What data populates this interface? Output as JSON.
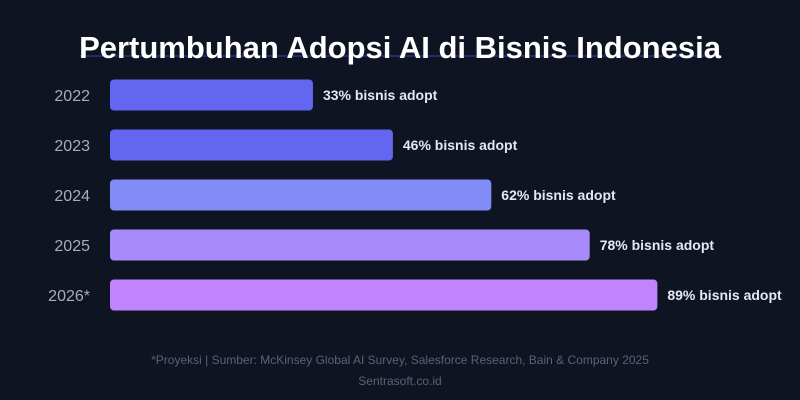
{
  "chart_data": {
    "type": "bar",
    "orientation": "horizontal",
    "title": "Pertumbuhan Adopsi AI di Bisnis Indonesia",
    "categories": [
      "2022",
      "2023",
      "2024",
      "2025",
      "2026*"
    ],
    "values": [
      33,
      46,
      62,
      78,
      89
    ],
    "data_labels": [
      "33% bisnis adopt",
      "46% bisnis adopt",
      "62% bisnis adopt",
      "78% bisnis adopt",
      "89% bisnis adopt"
    ],
    "bar_colors": [
      "#6366f1",
      "#6366f1",
      "#818cf8",
      "#a78bfa",
      "#c084fc"
    ],
    "xlim": [
      0,
      100
    ],
    "grid": false,
    "legend": "none"
  },
  "footer": {
    "note": "*Proyeksi | Sumber: McKinsey Global AI Survey, Salesforce Research, Bain & Company 2025",
    "brand": "Sentrasoft.co.id"
  },
  "colors": {
    "background": "#0f1423",
    "title": "#ffffff",
    "title_accent": "#3b3fb5",
    "category_text": "#a7adbb",
    "label_text": "#e6e8ef",
    "footer_text": "#5a6275"
  }
}
